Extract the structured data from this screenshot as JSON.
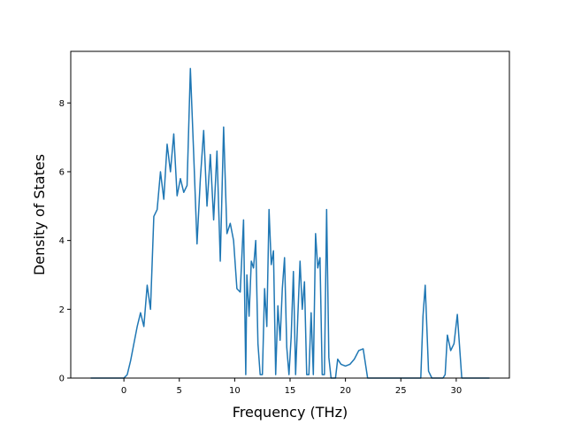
{
  "chart_data": {
    "type": "line",
    "title": "",
    "xlabel": "Frequency (THz)",
    "ylabel": "Density of States",
    "xlim": [
      -4.8,
      34.8
    ],
    "ylim": [
      0,
      9.5
    ],
    "xticks": [
      0,
      5,
      10,
      15,
      20,
      25,
      30
    ],
    "yticks": [
      0,
      2,
      4,
      6,
      8
    ],
    "grid": false,
    "legend": "none",
    "series": [
      {
        "color": "#1f77b4",
        "x": [
          -3,
          0,
          0.3,
          0.6,
          0.9,
          1.2,
          1.5,
          1.8,
          2.1,
          2.4,
          2.7,
          3.0,
          3.3,
          3.6,
          3.9,
          4.2,
          4.5,
          4.8,
          5.1,
          5.4,
          5.7,
          6.0,
          6.3,
          6.6,
          6.9,
          7.2,
          7.5,
          7.8,
          8.1,
          8.4,
          8.7,
          9.0,
          9.3,
          9.6,
          9.9,
          10.2,
          10.5,
          10.8,
          11.0,
          11.1,
          11.3,
          11.5,
          11.7,
          11.9,
          12.1,
          12.3,
          12.5,
          12.7,
          12.9,
          13.1,
          13.3,
          13.5,
          13.7,
          13.9,
          14.1,
          14.3,
          14.5,
          14.7,
          14.9,
          15.1,
          15.3,
          15.5,
          15.7,
          15.9,
          16.1,
          16.3,
          16.5,
          16.7,
          16.9,
          17.1,
          17.3,
          17.5,
          17.7,
          17.9,
          18.1,
          18.3,
          18.5,
          18.7,
          18.9,
          19.1,
          19.3,
          19.6,
          20.0,
          20.4,
          20.8,
          21.2,
          21.6,
          22.0,
          22.3,
          22.6,
          26.8,
          27.0,
          27.2,
          27.5,
          27.8,
          28.8,
          29.0,
          29.2,
          29.5,
          29.8,
          30.1,
          30.5,
          33
        ],
        "y": [
          0,
          0,
          0.1,
          0.5,
          1.0,
          1.5,
          1.9,
          1.5,
          2.7,
          2.0,
          4.7,
          4.9,
          6.0,
          5.2,
          6.8,
          6.0,
          7.1,
          5.3,
          5.8,
          5.4,
          5.6,
          9.0,
          6.5,
          3.9,
          5.8,
          7.2,
          5.0,
          6.5,
          4.6,
          6.6,
          3.4,
          7.3,
          4.2,
          4.5,
          4.0,
          2.6,
          2.5,
          4.6,
          0.1,
          3.0,
          1.8,
          3.4,
          3.2,
          4.0,
          1.0,
          0.1,
          0.1,
          2.6,
          1.5,
          4.9,
          3.3,
          3.7,
          0.1,
          2.1,
          1.1,
          2.6,
          3.5,
          0.9,
          0.1,
          1.2,
          3.1,
          0.1,
          1.8,
          3.4,
          2.0,
          2.8,
          0.1,
          0.1,
          1.9,
          0.1,
          4.2,
          3.2,
          3.5,
          0.1,
          0.1,
          4.9,
          0.6,
          0,
          0,
          0,
          0.55,
          0.4,
          0.35,
          0.4,
          0.55,
          0.8,
          0.85,
          0,
          0,
          0,
          0,
          1.8,
          2.7,
          0.2,
          0,
          0,
          0.1,
          1.25,
          0.8,
          1.0,
          1.85,
          0,
          0
        ]
      }
    ]
  }
}
